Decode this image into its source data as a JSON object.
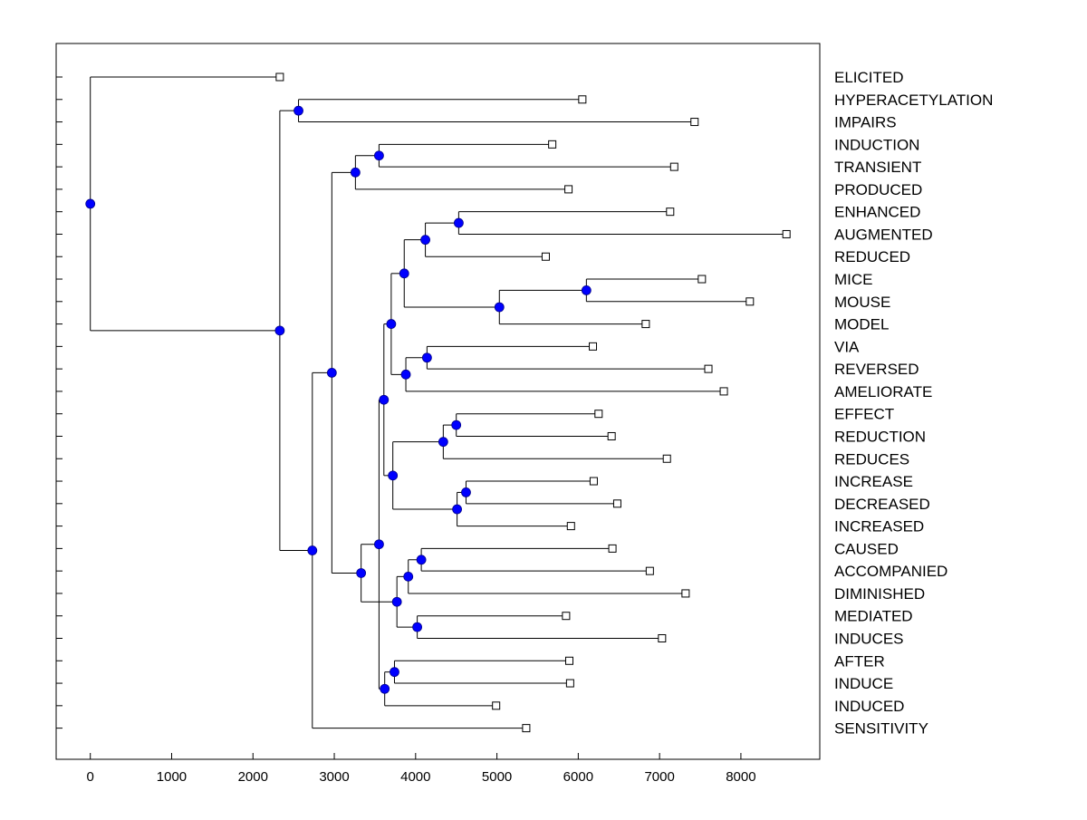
{
  "chart_data": {
    "type": "dendrogram",
    "xlim": [
      -420,
      8970
    ],
    "x_ticks": [
      0,
      1000,
      2000,
      3000,
      4000,
      5000,
      6000,
      7000,
      8000
    ],
    "x_tick_labels": [
      "0",
      "1000",
      "2000",
      "3000",
      "4000",
      "5000",
      "6000",
      "7000",
      "8000"
    ],
    "leaves": [
      {
        "label": "ELICITED",
        "value": 2330
      },
      {
        "label": "HYPERACETYLATION",
        "value": 6050
      },
      {
        "label": "IMPAIRS",
        "value": 7430
      },
      {
        "label": "INDUCTION",
        "value": 5680
      },
      {
        "label": "TRANSIENT",
        "value": 7180
      },
      {
        "label": "PRODUCED",
        "value": 5880
      },
      {
        "label": "ENHANCED",
        "value": 7130
      },
      {
        "label": "AUGMENTED",
        "value": 8560
      },
      {
        "label": "REDUCED",
        "value": 5600
      },
      {
        "label": "MICE",
        "value": 7520
      },
      {
        "label": "MOUSE",
        "value": 8110
      },
      {
        "label": "MODEL",
        "value": 6830
      },
      {
        "label": "VIA",
        "value": 6180
      },
      {
        "label": "REVERSED",
        "value": 7600
      },
      {
        "label": "AMELIORATE",
        "value": 7790
      },
      {
        "label": "EFFECT",
        "value": 6250
      },
      {
        "label": "REDUCTION",
        "value": 6410
      },
      {
        "label": "REDUCES",
        "value": 7090
      },
      {
        "label": "INCREASE",
        "value": 6190
      },
      {
        "label": "DECREASED",
        "value": 6480
      },
      {
        "label": "INCREASED",
        "value": 5910
      },
      {
        "label": "CAUSED",
        "value": 6420
      },
      {
        "label": "ACCOMPANIED",
        "value": 6880
      },
      {
        "label": "DIMINISHED",
        "value": 7320
      },
      {
        "label": "MEDIATED",
        "value": 5850
      },
      {
        "label": "INDUCES",
        "value": 7030
      },
      {
        "label": "AFTER",
        "value": 5890
      },
      {
        "label": "INDUCE",
        "value": 5900
      },
      {
        "label": "INDUCED",
        "value": 4990
      },
      {
        "label": "SENSITIVITY",
        "value": 5360
      }
    ],
    "nodes": [
      {
        "id": "n0",
        "value": 0,
        "children": [
          "L0",
          "n1"
        ]
      },
      {
        "id": "n1",
        "value": 2330,
        "children": [
          "n2",
          "n3"
        ]
      },
      {
        "id": "n2",
        "value": 2560,
        "children": [
          "L1",
          "L2"
        ]
      },
      {
        "id": "n3",
        "value": 2730,
        "children": [
          "n4",
          "L29"
        ]
      },
      {
        "id": "n4",
        "value": 2970,
        "children": [
          "n5",
          "n7"
        ]
      },
      {
        "id": "n5",
        "value": 3260,
        "children": [
          "n6",
          "L5"
        ]
      },
      {
        "id": "n6",
        "value": 3550,
        "children": [
          "L3",
          "L4"
        ]
      },
      {
        "id": "n7",
        "value": 3330,
        "children": [
          "n8",
          "n23"
        ]
      },
      {
        "id": "n8",
        "value": 3550,
        "children": [
          "n9",
          "n28"
        ]
      },
      {
        "id": "n9",
        "value": 3610,
        "children": [
          "n10",
          "n17"
        ]
      },
      {
        "id": "n10",
        "value": 3700,
        "children": [
          "n11",
          "n15"
        ]
      },
      {
        "id": "n11",
        "value": 3860,
        "children": [
          "n12",
          "n14"
        ]
      },
      {
        "id": "n12",
        "value": 4120,
        "children": [
          "n13",
          "L8"
        ]
      },
      {
        "id": "n13",
        "value": 4530,
        "children": [
          "L6",
          "L7"
        ]
      },
      {
        "id": "n14",
        "value": 5030,
        "children": [
          "n16",
          "L11"
        ]
      },
      {
        "id": "n16",
        "value": 6100,
        "children": [
          "L9",
          "L10"
        ]
      },
      {
        "id": "n15",
        "value": 3880,
        "children": [
          "n18",
          "L14"
        ]
      },
      {
        "id": "n18",
        "value": 4140,
        "children": [
          "L12",
          "L13"
        ]
      },
      {
        "id": "n17",
        "value": 3720,
        "children": [
          "n19",
          "n21"
        ]
      },
      {
        "id": "n19",
        "value": 4340,
        "children": [
          "n20",
          "L17"
        ]
      },
      {
        "id": "n20",
        "value": 4500,
        "children": [
          "L15",
          "L16"
        ]
      },
      {
        "id": "n21",
        "value": 4510,
        "children": [
          "n22",
          "L20"
        ]
      },
      {
        "id": "n22",
        "value": 4620,
        "children": [
          "L18",
          "L19"
        ]
      },
      {
        "id": "n23",
        "value": 3770,
        "children": [
          "n24",
          "n26"
        ]
      },
      {
        "id": "n24",
        "value": 3910,
        "children": [
          "n25",
          "L23"
        ]
      },
      {
        "id": "n25",
        "value": 4070,
        "children": [
          "L21",
          "L22"
        ]
      },
      {
        "id": "n26",
        "value": 4020,
        "children": [
          "L24",
          "L25"
        ]
      },
      {
        "id": "n28",
        "value": 3620,
        "children": [
          "n29",
          "L28"
        ]
      },
      {
        "id": "n29",
        "value": 3740,
        "children": [
          "L26",
          "L27"
        ]
      }
    ],
    "colors": {
      "node_fill": "#0000ff",
      "leaf_fill": "#ffffff",
      "line": "#000000"
    }
  }
}
